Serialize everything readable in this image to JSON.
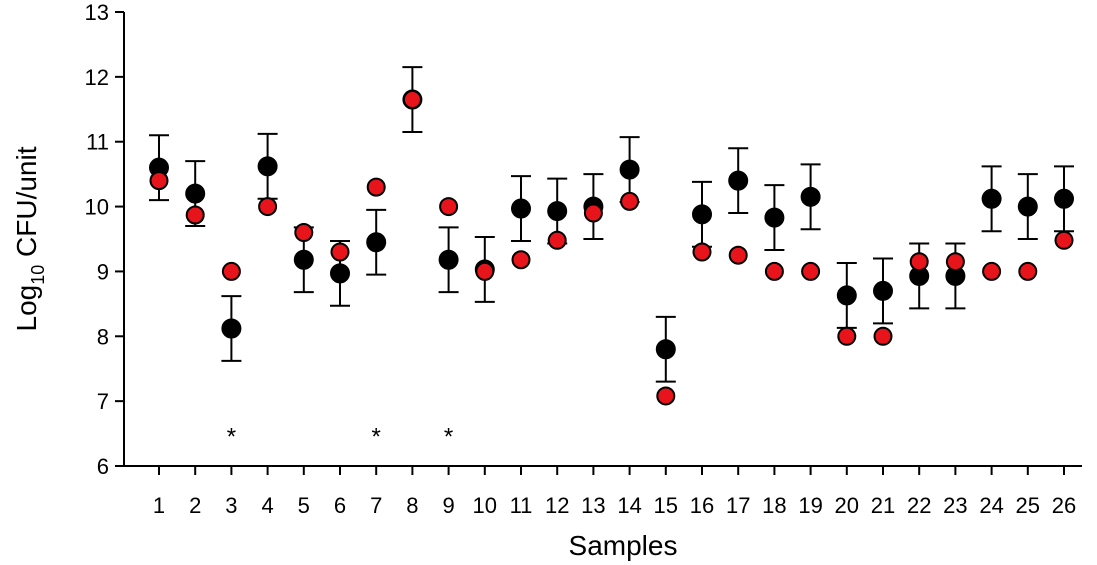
{
  "chart_data": {
    "type": "scatter",
    "xlabel": "Samples",
    "ylabel_main": "Log",
    "ylabel_sub": "10",
    "ylabel_rest": " CFU/unit",
    "ylim": [
      6,
      13
    ],
    "yticks": [
      6,
      7,
      8,
      9,
      10,
      11,
      12,
      13
    ],
    "x": [
      "1",
      "2",
      "3",
      "4",
      "5",
      "6",
      "7",
      "8",
      "9",
      "10",
      "11",
      "12",
      "13",
      "14",
      "15",
      "16",
      "17",
      "18",
      "19",
      "20",
      "21",
      "22",
      "23",
      "24",
      "25",
      "26"
    ],
    "series": [
      {
        "color": "#000000",
        "values": [
          10.6,
          10.2,
          8.12,
          10.62,
          9.18,
          8.97,
          9.45,
          11.65,
          9.18,
          9.03,
          9.97,
          9.93,
          10.0,
          10.57,
          7.8,
          9.88,
          10.4,
          9.83,
          10.15,
          8.63,
          8.7,
          8.93,
          8.93,
          10.12,
          10.0,
          10.12
        ],
        "error": [
          0.5,
          0.5,
          0.5,
          0.5,
          0.5,
          0.5,
          0.5,
          0.5,
          0.5,
          0.5,
          0.5,
          0.5,
          0.5,
          0.5,
          0.5,
          0.5,
          0.5,
          0.5,
          0.5,
          0.5,
          0.5,
          0.5,
          0.5,
          0.5,
          0.5,
          0.5
        ]
      },
      {
        "color": "#e8141b",
        "values": [
          10.4,
          9.87,
          9.0,
          10.0,
          9.6,
          9.3,
          10.3,
          11.65,
          10.0,
          9.0,
          9.18,
          9.48,
          9.9,
          10.08,
          7.08,
          9.3,
          9.25,
          9.0,
          9.0,
          8.0,
          8.0,
          9.15,
          9.15,
          9.0,
          9.0,
          9.48
        ]
      }
    ],
    "annotations": [
      {
        "text": "*",
        "x": "3",
        "y": 6.55
      },
      {
        "text": "*",
        "x": "7",
        "y": 6.55
      },
      {
        "text": "*",
        "x": "9",
        "y": 6.55
      }
    ]
  }
}
